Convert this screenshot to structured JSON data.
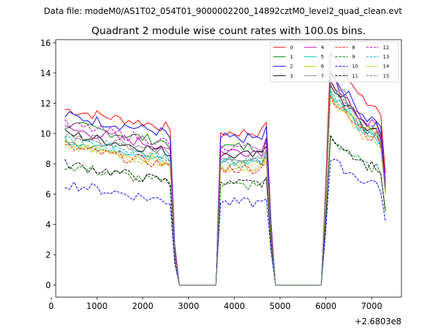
{
  "figure": {
    "suptitle": "Data file: modeM0/AS1T02_054T01_9000002200_14892cztM0_level2_quad_clean.evt"
  },
  "chart_data": {
    "type": "line",
    "title": "Quadrant 2 module wise count rates with 100.0s bins.",
    "xlabel": "",
    "ylabel": "",
    "x_offset_label": "+2.6803e8",
    "xlim": [
      100,
      7650
    ],
    "ylim": [
      -0.8,
      16.2
    ],
    "xticks": [
      0,
      1000,
      2000,
      3000,
      4000,
      5000,
      6000,
      7000
    ],
    "yticks": [
      0,
      2,
      4,
      6,
      8,
      10,
      12,
      14,
      16
    ],
    "legend_position": "upper right",
    "legend_columns": 4,
    "series": [
      {
        "name": "0",
        "color": "#ff0000",
        "dash": "solid",
        "base": 10.6,
        "peak": 15.3,
        "tail": 11.9
      },
      {
        "name": "1",
        "color": "#008000",
        "dash": "solid",
        "base": 9.6,
        "peak": 13.5,
        "tail": 10.6
      },
      {
        "name": "2",
        "color": "#0000ff",
        "dash": "solid",
        "base": 10.2,
        "peak": 14.0,
        "tail": 11.0
      },
      {
        "name": "3",
        "color": "#000000",
        "dash": "solid",
        "base": 9.0,
        "peak": 13.2,
        "tail": 10.3
      },
      {
        "name": "4",
        "color": "#bf00bf",
        "dash": "solid",
        "base": 9.3,
        "peak": 13.8,
        "tail": 10.6
      },
      {
        "name": "5",
        "color": "#00bfbf",
        "dash": "solid",
        "base": 8.6,
        "peak": 12.8,
        "tail": 9.8
      },
      {
        "name": "6",
        "color": "#bfbf00",
        "dash": "solid",
        "base": 8.3,
        "peak": 12.6,
        "tail": 10.0
      },
      {
        "name": "7",
        "color": "#808080",
        "dash": "solid",
        "base": 8.9,
        "peak": 14.1,
        "tail": 10.2
      },
      {
        "name": "8",
        "color": "#ff0000",
        "dash": "dashed",
        "base": 8.1,
        "peak": 12.5,
        "tail": 9.8
      },
      {
        "name": "9",
        "color": "#008000",
        "dash": "dashed",
        "base": 6.9,
        "peak": 9.7,
        "tail": 7.8
      },
      {
        "name": "10",
        "color": "#0000ff",
        "dash": "dashed",
        "base": 5.7,
        "peak": 8.2,
        "tail": 6.8
      },
      {
        "name": "11",
        "color": "#000000",
        "dash": "dashed",
        "base": 7.0,
        "peak": 9.9,
        "tail": 7.9
      },
      {
        "name": "12",
        "color": "#bf00bf",
        "dash": "dashed",
        "base": 9.6,
        "peak": 13.6,
        "tail": 10.4
      },
      {
        "name": "13",
        "color": "#00bfbf",
        "dash": "dashed",
        "base": 8.5,
        "peak": 12.9,
        "tail": 9.9
      },
      {
        "name": "14",
        "color": "#bfbf00",
        "dash": "dashed",
        "base": 8.2,
        "peak": 12.4,
        "tail": 9.6
      },
      {
        "name": "15",
        "color": "#808080",
        "dash": "dashed",
        "base": 8.7,
        "peak": 13.3,
        "tail": 10.1
      }
    ],
    "segments_note": "Active intervals: ~300-2600, ~3650-4750, ~6050-7300; zero counts in gaps ~2800-3600 and ~4900-5950"
  }
}
